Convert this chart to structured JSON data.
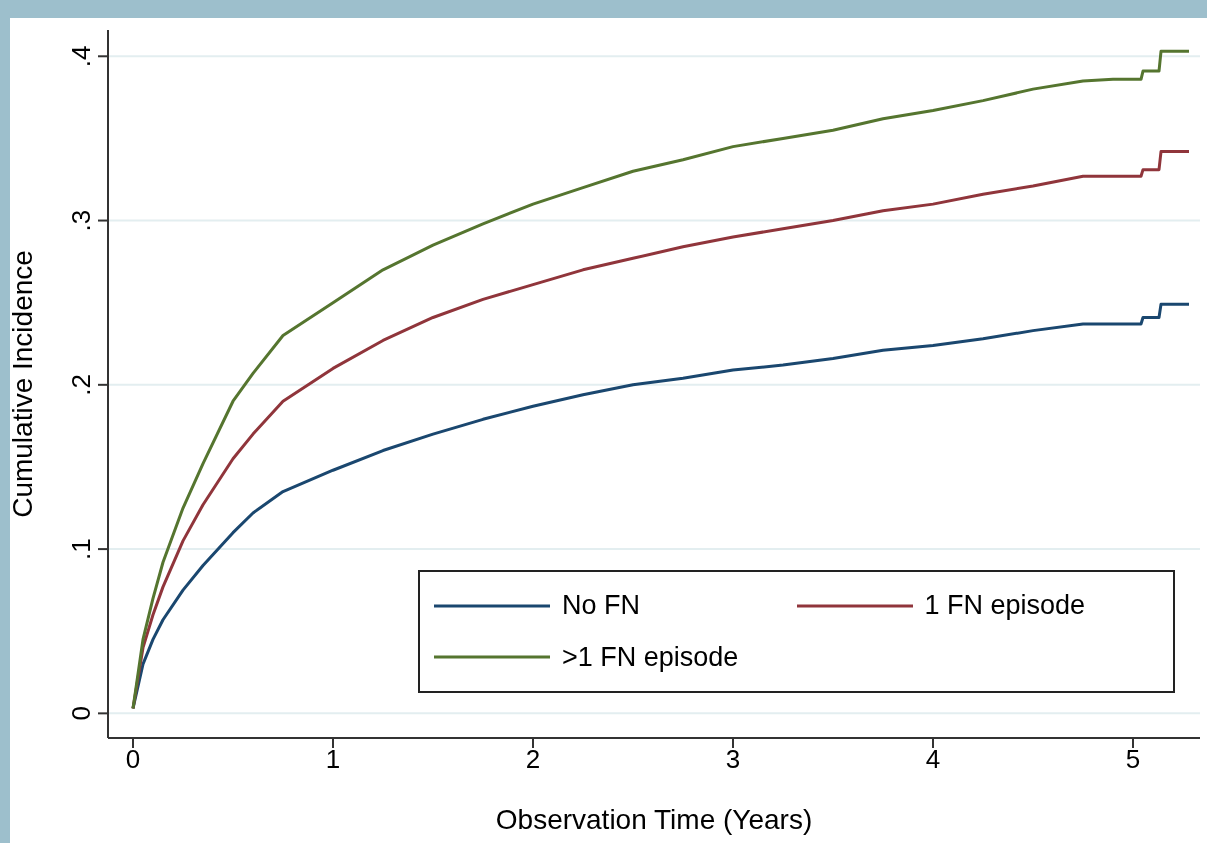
{
  "chart_data": {
    "type": "line",
    "xlabel": "Observation Time (Years)",
    "ylabel": "Cumulative Incidence",
    "x": [
      0,
      0.05,
      0.1,
      0.15,
      0.25,
      0.35,
      0.5,
      0.6,
      0.75,
      1,
      1.25,
      1.5,
      1.75,
      2,
      2.25,
      2.5,
      2.75,
      3,
      3.25,
      3.5,
      3.75,
      4,
      4.25,
      4.5,
      4.75,
      4.9,
      5.04,
      5.05,
      5.13,
      5.14,
      5.28
    ],
    "series": [
      {
        "name": "No FN",
        "color": "#1a476f",
        "values": [
          0.003,
          0.03,
          0.045,
          0.057,
          0.075,
          0.09,
          0.11,
          0.122,
          0.135,
          0.148,
          0.16,
          0.17,
          0.179,
          0.187,
          0.194,
          0.2,
          0.204,
          0.209,
          0.212,
          0.216,
          0.221,
          0.224,
          0.228,
          0.233,
          0.237,
          0.237,
          0.237,
          0.241,
          0.241,
          0.249,
          0.249
        ]
      },
      {
        "name": "1 FN episode",
        "color": "#90353b",
        "values": [
          0.003,
          0.04,
          0.06,
          0.077,
          0.105,
          0.127,
          0.155,
          0.17,
          0.19,
          0.21,
          0.227,
          0.241,
          0.252,
          0.261,
          0.27,
          0.277,
          0.284,
          0.29,
          0.295,
          0.3,
          0.306,
          0.31,
          0.316,
          0.321,
          0.327,
          0.327,
          0.327,
          0.331,
          0.331,
          0.342,
          0.342
        ]
      },
      {
        "name": ">1 FN episode",
        "color": "#55752f",
        "values": [
          0.003,
          0.045,
          0.07,
          0.092,
          0.125,
          0.152,
          0.19,
          0.207,
          0.23,
          0.25,
          0.27,
          0.285,
          0.298,
          0.31,
          0.32,
          0.33,
          0.337,
          0.345,
          0.35,
          0.355,
          0.362,
          0.367,
          0.373,
          0.38,
          0.385,
          0.386,
          0.386,
          0.391,
          0.391,
          0.403,
          0.403
        ]
      }
    ],
    "xlim": [
      -0.125,
      5.335
    ],
    "xticks": [
      0,
      1,
      2,
      3,
      4,
      5
    ],
    "ylim": [
      -0.015,
      0.416
    ],
    "yticks": [
      0,
      {
        "value": 0.1,
        "label": ".1"
      },
      {
        "value": 0.2,
        "label": ".2"
      },
      {
        "value": 0.3,
        "label": ".3"
      },
      {
        "value": 0.4,
        "label": ".4"
      }
    ],
    "grid": "y",
    "legend": "bottom right",
    "line_style": "solid",
    "marker": "none"
  }
}
